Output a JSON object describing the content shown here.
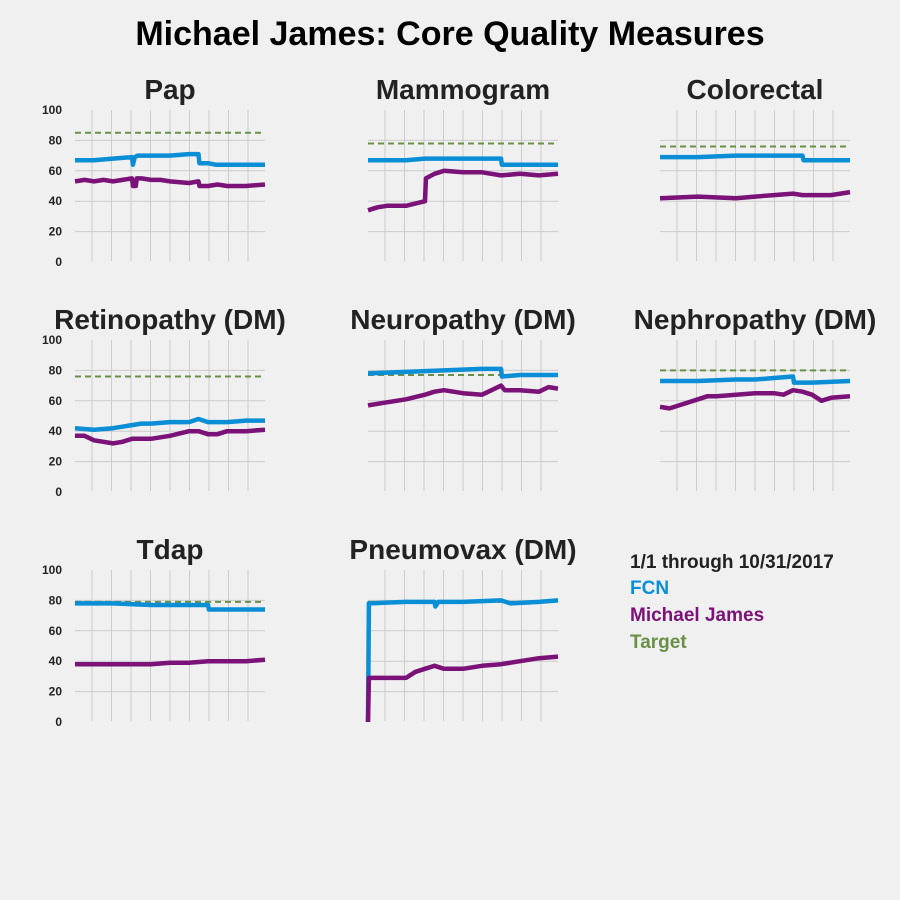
{
  "title": "Michael James: Core Quality Measures",
  "legend": {
    "period": "1/1 through 10/31/2017",
    "entries": [
      {
        "label": "FCN",
        "color": "#0a8ed6"
      },
      {
        "label": "Michael James",
        "color": "#7a1278"
      },
      {
        "label": "Target",
        "color": "#6a8f46"
      }
    ]
  },
  "chart_data": [
    {
      "type": "line",
      "title": "Pap",
      "ylim": [
        0,
        100
      ],
      "yticks": [
        0,
        20,
        40,
        60,
        80,
        100
      ],
      "x_range": [
        0,
        10
      ],
      "grid": true,
      "target": 85,
      "series": [
        {
          "name": "FCN",
          "color": "#0a8ed6",
          "points": [
            [
              0,
              67
            ],
            [
              1,
              67
            ],
            [
              2,
              68
            ],
            [
              3,
              69
            ],
            [
              3.05,
              64
            ],
            [
              3.15,
              69
            ],
            [
              3.3,
              70
            ],
            [
              4,
              70
            ],
            [
              5,
              70
            ],
            [
              6,
              71
            ],
            [
              6.5,
              71
            ],
            [
              6.55,
              65
            ],
            [
              7,
              65
            ],
            [
              7.4,
              64
            ],
            [
              8,
              64
            ],
            [
              9,
              64
            ],
            [
              10,
              64
            ]
          ]
        },
        {
          "name": "Michael James",
          "color": "#7a1278",
          "points": [
            [
              0,
              53
            ],
            [
              0.5,
              54
            ],
            [
              1,
              53
            ],
            [
              1.5,
              54
            ],
            [
              2,
              53
            ],
            [
              2.5,
              54
            ],
            [
              3,
              55
            ],
            [
              3.05,
              50
            ],
            [
              3.2,
              50
            ],
            [
              3.25,
              55
            ],
            [
              3.5,
              55
            ],
            [
              4,
              54
            ],
            [
              4.5,
              54
            ],
            [
              5,
              53
            ],
            [
              6,
              52
            ],
            [
              6.5,
              53
            ],
            [
              6.55,
              50
            ],
            [
              7,
              50
            ],
            [
              7.5,
              51
            ],
            [
              8,
              50
            ],
            [
              9,
              50
            ],
            [
              10,
              51
            ]
          ]
        }
      ]
    },
    {
      "type": "line",
      "title": "Mammogram",
      "ylim": [
        0,
        100
      ],
      "yticks": [
        0,
        20,
        40,
        60,
        80,
        100
      ],
      "x_range": [
        0,
        10
      ],
      "grid": true,
      "target": 78,
      "series": [
        {
          "name": "FCN",
          "color": "#0a8ed6",
          "points": [
            [
              0,
              67
            ],
            [
              2,
              67
            ],
            [
              3,
              68
            ],
            [
              5,
              68
            ],
            [
              7,
              68
            ],
            [
              7.05,
              64
            ],
            [
              8,
              64
            ],
            [
              10,
              64
            ]
          ]
        },
        {
          "name": "Michael James",
          "color": "#7a1278",
          "points": [
            [
              0,
              34
            ],
            [
              0.5,
              36
            ],
            [
              1,
              37
            ],
            [
              2,
              37
            ],
            [
              3,
              40
            ],
            [
              3.05,
              55
            ],
            [
              3.5,
              58
            ],
            [
              4,
              60
            ],
            [
              5,
              59
            ],
            [
              6,
              59
            ],
            [
              7,
              57
            ],
            [
              8,
              58
            ],
            [
              9,
              57
            ],
            [
              10,
              58
            ]
          ]
        }
      ]
    },
    {
      "type": "line",
      "title": "Colorectal",
      "ylim": [
        0,
        100
      ],
      "yticks": [
        0,
        20,
        40,
        60,
        80,
        100
      ],
      "x_range": [
        0,
        10
      ],
      "grid": true,
      "target": 76,
      "series": [
        {
          "name": "FCN",
          "color": "#0a8ed6",
          "points": [
            [
              0,
              69
            ],
            [
              2,
              69
            ],
            [
              4,
              70
            ],
            [
              6,
              70
            ],
            [
              7.5,
              70
            ],
            [
              7.55,
              67
            ],
            [
              10,
              67
            ]
          ]
        },
        {
          "name": "Michael James",
          "color": "#7a1278",
          "points": [
            [
              0,
              42
            ],
            [
              2,
              43
            ],
            [
              4,
              42
            ],
            [
              5,
              43
            ],
            [
              6,
              44
            ],
            [
              7,
              45
            ],
            [
              7.5,
              44
            ],
            [
              8,
              44
            ],
            [
              9,
              44
            ],
            [
              10,
              46
            ]
          ]
        }
      ]
    },
    {
      "type": "line",
      "title": "Retinopathy (DM)",
      "ylim": [
        0,
        100
      ],
      "yticks": [
        0,
        20,
        40,
        60,
        80,
        100
      ],
      "x_range": [
        0,
        10
      ],
      "grid": true,
      "target": 76,
      "series": [
        {
          "name": "FCN",
          "color": "#0a8ed6",
          "points": [
            [
              0,
              42
            ],
            [
              1,
              41
            ],
            [
              2,
              42
            ],
            [
              3,
              44
            ],
            [
              3.5,
              45
            ],
            [
              4,
              45
            ],
            [
              5,
              46
            ],
            [
              6,
              46
            ],
            [
              6.5,
              48
            ],
            [
              7,
              46
            ],
            [
              8,
              46
            ],
            [
              9,
              47
            ],
            [
              10,
              47
            ]
          ]
        },
        {
          "name": "Michael James",
          "color": "#7a1278",
          "points": [
            [
              0,
              37
            ],
            [
              0.5,
              37
            ],
            [
              1,
              34
            ],
            [
              2,
              32
            ],
            [
              2.5,
              33
            ],
            [
              3,
              35
            ],
            [
              4,
              35
            ],
            [
              5,
              37
            ],
            [
              6,
              40
            ],
            [
              6.5,
              40
            ],
            [
              7,
              38
            ],
            [
              7.5,
              38
            ],
            [
              8,
              40
            ],
            [
              9,
              40
            ],
            [
              10,
              41
            ]
          ]
        }
      ]
    },
    {
      "type": "line",
      "title": "Neuropathy (DM)",
      "ylim": [
        0,
        100
      ],
      "yticks": [
        0,
        20,
        40,
        60,
        80,
        100
      ],
      "x_range": [
        0,
        10
      ],
      "grid": true,
      "target": 77,
      "series": [
        {
          "name": "FCN",
          "color": "#0a8ed6",
          "points": [
            [
              0,
              78
            ],
            [
              2,
              79
            ],
            [
              4,
              80
            ],
            [
              6,
              81
            ],
            [
              7,
              81
            ],
            [
              7.05,
              76
            ],
            [
              8,
              77
            ],
            [
              10,
              77
            ]
          ]
        },
        {
          "name": "Michael James",
          "color": "#7a1278",
          "points": [
            [
              0,
              57
            ],
            [
              1,
              59
            ],
            [
              2,
              61
            ],
            [
              3,
              64
            ],
            [
              3.5,
              66
            ],
            [
              4,
              67
            ],
            [
              5,
              65
            ],
            [
              6,
              64
            ],
            [
              6.5,
              67
            ],
            [
              7,
              70
            ],
            [
              7.2,
              67
            ],
            [
              8,
              67
            ],
            [
              9,
              66
            ],
            [
              9.5,
              69
            ],
            [
              10,
              68
            ]
          ]
        }
      ]
    },
    {
      "type": "line",
      "title": "Nephropathy (DM)",
      "ylim": [
        0,
        100
      ],
      "yticks": [
        0,
        20,
        40,
        60,
        80,
        100
      ],
      "x_range": [
        0,
        10
      ],
      "grid": true,
      "target": 80,
      "series": [
        {
          "name": "FCN",
          "color": "#0a8ed6",
          "points": [
            [
              0,
              73
            ],
            [
              2,
              73
            ],
            [
              4,
              74
            ],
            [
              5,
              74
            ],
            [
              6,
              75
            ],
            [
              7,
              76
            ],
            [
              7.05,
              72
            ],
            [
              8,
              72
            ],
            [
              10,
              73
            ]
          ]
        },
        {
          "name": "Michael James",
          "color": "#7a1278",
          "points": [
            [
              0,
              56
            ],
            [
              0.5,
              55
            ],
            [
              1,
              57
            ],
            [
              2,
              61
            ],
            [
              2.5,
              63
            ],
            [
              3,
              63
            ],
            [
              4,
              64
            ],
            [
              5,
              65
            ],
            [
              6,
              65
            ],
            [
              6.5,
              64
            ],
            [
              7,
              67
            ],
            [
              7.5,
              66
            ],
            [
              8,
              64
            ],
            [
              8.5,
              60
            ],
            [
              9,
              62
            ],
            [
              10,
              63
            ]
          ]
        }
      ]
    },
    {
      "type": "line",
      "title": "Tdap",
      "ylim": [
        0,
        100
      ],
      "yticks": [
        0,
        20,
        40,
        60,
        80,
        100
      ],
      "x_range": [
        0,
        10
      ],
      "grid": true,
      "target": 79,
      "series": [
        {
          "name": "FCN",
          "color": "#0a8ed6",
          "points": [
            [
              0,
              78
            ],
            [
              2,
              78
            ],
            [
              4,
              77
            ],
            [
              6,
              77
            ],
            [
              7,
              77
            ],
            [
              7.05,
              74
            ],
            [
              8,
              74
            ],
            [
              10,
              74
            ]
          ]
        },
        {
          "name": "Michael James",
          "color": "#7a1278",
          "points": [
            [
              0,
              38
            ],
            [
              2,
              38
            ],
            [
              4,
              38
            ],
            [
              5,
              39
            ],
            [
              6,
              39
            ],
            [
              7,
              40
            ],
            [
              8,
              40
            ],
            [
              9,
              40
            ],
            [
              10,
              41
            ]
          ]
        }
      ]
    },
    {
      "type": "line",
      "title": "Pneumovax (DM)",
      "ylim": [
        0,
        100
      ],
      "yticks": [
        0,
        20,
        40,
        60,
        80,
        100
      ],
      "x_range": [
        0,
        10
      ],
      "grid": true,
      "target": 79,
      "series": [
        {
          "name": "FCN",
          "color": "#0a8ed6",
          "points": [
            [
              0,
              0
            ],
            [
              0.05,
              78
            ],
            [
              2,
              79
            ],
            [
              3.5,
              79
            ],
            [
              3.55,
              76
            ],
            [
              3.7,
              79
            ],
            [
              5,
              79
            ],
            [
              7,
              80
            ],
            [
              7.5,
              78
            ],
            [
              9,
              79
            ],
            [
              10,
              80
            ]
          ]
        },
        {
          "name": "Michael James",
          "color": "#7a1278",
          "points": [
            [
              0,
              0
            ],
            [
              0.05,
              29
            ],
            [
              1,
              29
            ],
            [
              2,
              29
            ],
            [
              2.5,
              33
            ],
            [
              3,
              35
            ],
            [
              3.5,
              37
            ],
            [
              4,
              35
            ],
            [
              5,
              35
            ],
            [
              6,
              37
            ],
            [
              7,
              38
            ],
            [
              7.5,
              39
            ],
            [
              8,
              40
            ],
            [
              9,
              42
            ],
            [
              10,
              43
            ]
          ]
        }
      ]
    }
  ]
}
